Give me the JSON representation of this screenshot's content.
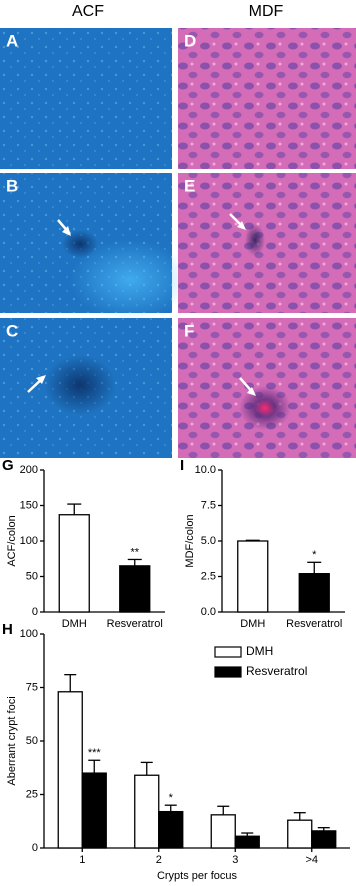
{
  "columns": [
    "ACF",
    "MDF"
  ],
  "panels": [
    {
      "label": "A"
    },
    {
      "label": "B"
    },
    {
      "label": "C"
    },
    {
      "label": "D"
    },
    {
      "label": "E"
    },
    {
      "label": "F"
    }
  ],
  "chart_data": [
    {
      "type": "bar",
      "panel_label": "G",
      "ylabel": "ACF/colon",
      "categories": [
        "DMH",
        "Resveratrol"
      ],
      "values": [
        137,
        65
      ],
      "errors": [
        15,
        9
      ],
      "stars": [
        null,
        "**"
      ],
      "colors": [
        "#ffffff",
        "#000000"
      ],
      "ylim": [
        0,
        200
      ],
      "yticks": [
        0,
        50,
        100,
        150,
        200
      ]
    },
    {
      "type": "bar",
      "panel_label": "I",
      "ylabel": "MDF/colon",
      "categories": [
        "DMH",
        "Resveratrol"
      ],
      "values": [
        5.0,
        2.7
      ],
      "errors": [
        0.05,
        0.8
      ],
      "stars": [
        null,
        "*"
      ],
      "colors": [
        "#ffffff",
        "#000000"
      ],
      "ylim": [
        0,
        10
      ],
      "yticks": [
        {
          "value": 0,
          "label": "0.0"
        },
        2.5,
        {
          "value": 5,
          "label": "5.0"
        },
        7.5,
        {
          "value": 10,
          "label": "10.0"
        }
      ]
    },
    {
      "type": "grouped-bar",
      "panel_label": "H",
      "ylabel": "Aberrant crypt foci",
      "xlabel": "Crypts per focus",
      "categories": [
        "1",
        "2",
        "3",
        ">4"
      ],
      "series": [
        {
          "name": "DMH",
          "color": "#ffffff",
          "values": [
            73,
            34,
            15.5,
            13
          ],
          "errors": [
            8,
            6,
            4,
            3.5
          ],
          "stars": [
            null,
            null,
            null,
            null
          ]
        },
        {
          "name": "Resveratrol",
          "color": "#000000",
          "values": [
            35,
            17,
            5.5,
            8
          ],
          "errors": [
            6,
            3,
            1.5,
            1.5
          ],
          "stars": [
            "***",
            "*",
            null,
            null
          ]
        }
      ],
      "ylim": [
        0,
        100
      ],
      "yticks": [
        0,
        25,
        50,
        75,
        100
      ]
    }
  ]
}
